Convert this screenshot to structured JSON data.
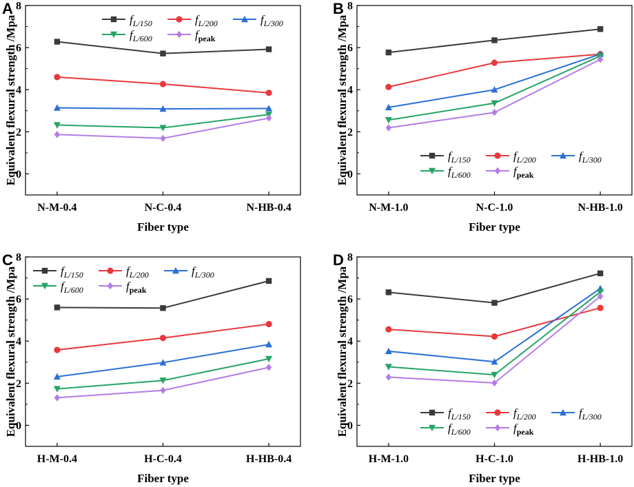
{
  "figure": {
    "legend_subscripts": [
      "L/150",
      "L/200",
      "L/300",
      "L/600",
      "peak"
    ]
  },
  "chart_data": [
    {
      "panel": "A",
      "type": "line",
      "categories": [
        "N-M-0.4",
        "N-C-0.4",
        "N-HB-0.4"
      ],
      "xlabel": "Fiber type",
      "ylabel": "Equivalent flexural strength /Mpa",
      "ylim": [
        -1,
        8
      ],
      "yticks": [
        0,
        2,
        4,
        6,
        8
      ],
      "legend_position": "top",
      "series": [
        {
          "name": "f_L/150",
          "italic": "f",
          "sub": "L/150",
          "marker": "square",
          "color": "#3a3a3a",
          "values": [
            6.28,
            5.72,
            5.92
          ]
        },
        {
          "name": "f_L/200",
          "italic": "f",
          "sub": "L/200",
          "marker": "circle",
          "color": "#e8383b",
          "values": [
            4.6,
            4.27,
            3.85
          ]
        },
        {
          "name": "f_L/300",
          "italic": "f",
          "sub": "L/300",
          "marker": "triangle-up",
          "color": "#2a6fd6",
          "values": [
            3.14,
            3.09,
            3.11
          ]
        },
        {
          "name": "f_L/600",
          "italic": "f",
          "sub": "L/600",
          "marker": "triangle-down",
          "color": "#25a463",
          "values": [
            2.32,
            2.19,
            2.82
          ]
        },
        {
          "name": "f_peak",
          "italic": "f",
          "sub": "peak",
          "marker": "diamond",
          "color": "#b37ce6",
          "values": [
            1.87,
            1.69,
            2.65
          ]
        }
      ]
    },
    {
      "panel": "B",
      "type": "line",
      "categories": [
        "N-M-1.0",
        "N-C-1.0",
        "N-HB-1.0"
      ],
      "xlabel": "Fiber type",
      "ylabel": "Equivalent flexural strength /Mpa",
      "ylim": [
        -1,
        8
      ],
      "yticks": [
        0,
        2,
        4,
        6,
        8
      ],
      "legend_position": "middle",
      "series": [
        {
          "name": "f_L/150",
          "italic": "f",
          "sub": "L/150",
          "marker": "square",
          "color": "#3a3a3a",
          "values": [
            5.77,
            6.35,
            6.88
          ]
        },
        {
          "name": "f_L/200",
          "italic": "f",
          "sub": "L/200",
          "marker": "circle",
          "color": "#e8383b",
          "values": [
            4.13,
            5.28,
            5.69
          ]
        },
        {
          "name": "f_L/300",
          "italic": "f",
          "sub": "L/300",
          "marker": "triangle-up",
          "color": "#2a6fd6",
          "values": [
            3.16,
            4.0,
            5.69
          ]
        },
        {
          "name": "f_L/600",
          "italic": "f",
          "sub": "L/600",
          "marker": "triangle-down",
          "color": "#25a463",
          "values": [
            2.56,
            3.36,
            5.6
          ]
        },
        {
          "name": "f_peak",
          "italic": "f",
          "sub": "peak",
          "marker": "diamond",
          "color": "#b37ce6",
          "values": [
            2.19,
            2.92,
            5.44
          ]
        }
      ]
    },
    {
      "panel": "C",
      "type": "line",
      "categories": [
        "H-M-0.4",
        "H-C-0.4",
        "H-HB-0.4"
      ],
      "xlabel": "Fiber type",
      "ylabel": "Equivalent flexural strength /Mpa",
      "ylim": [
        -1,
        8
      ],
      "yticks": [
        0,
        2,
        4,
        6,
        8
      ],
      "legend_position": "top",
      "series": [
        {
          "name": "f_L/150",
          "italic": "f",
          "sub": "L/150",
          "marker": "square",
          "color": "#3a3a3a",
          "values": [
            5.6,
            5.57,
            6.86
          ]
        },
        {
          "name": "f_L/200",
          "italic": "f",
          "sub": "L/200",
          "marker": "circle",
          "color": "#e8383b",
          "values": [
            3.58,
            4.15,
            4.81
          ]
        },
        {
          "name": "f_L/300",
          "italic": "f",
          "sub": "L/300",
          "marker": "triangle-up",
          "color": "#2a6fd6",
          "values": [
            2.31,
            2.98,
            3.84
          ]
        },
        {
          "name": "f_L/600",
          "italic": "f",
          "sub": "L/600",
          "marker": "triangle-down",
          "color": "#25a463",
          "values": [
            1.73,
            2.13,
            3.16
          ]
        },
        {
          "name": "f_peak",
          "italic": "f",
          "sub": "peak",
          "marker": "diamond",
          "color": "#b37ce6",
          "values": [
            1.31,
            1.66,
            2.75
          ]
        }
      ]
    },
    {
      "panel": "D",
      "type": "line",
      "categories": [
        "H-M-1.0",
        "H-C-1.0",
        "H-HB-1.0"
      ],
      "xlabel": "Fiber type",
      "ylabel": "Equivalent flexural strength /Mpa",
      "ylim": [
        -1,
        8
      ],
      "yticks": [
        0,
        2,
        4,
        6,
        8
      ],
      "legend_position": "bottom",
      "series": [
        {
          "name": "f_L/150",
          "italic": "f",
          "sub": "L/150",
          "marker": "square",
          "color": "#3a3a3a",
          "values": [
            6.32,
            5.82,
            7.22
          ]
        },
        {
          "name": "f_L/200",
          "italic": "f",
          "sub": "L/200",
          "marker": "circle",
          "color": "#e8383b",
          "values": [
            4.56,
            4.22,
            5.58
          ]
        },
        {
          "name": "f_L/300",
          "italic": "f",
          "sub": "L/300",
          "marker": "triangle-up",
          "color": "#2a6fd6",
          "values": [
            3.52,
            3.02,
            6.5
          ]
        },
        {
          "name": "f_L/600",
          "italic": "f",
          "sub": "L/600",
          "marker": "triangle-down",
          "color": "#25a463",
          "values": [
            2.78,
            2.4,
            6.34
          ]
        },
        {
          "name": "f_peak",
          "italic": "f",
          "sub": "peak",
          "marker": "diamond",
          "color": "#b37ce6",
          "values": [
            2.29,
            2.01,
            6.13
          ]
        }
      ]
    }
  ]
}
